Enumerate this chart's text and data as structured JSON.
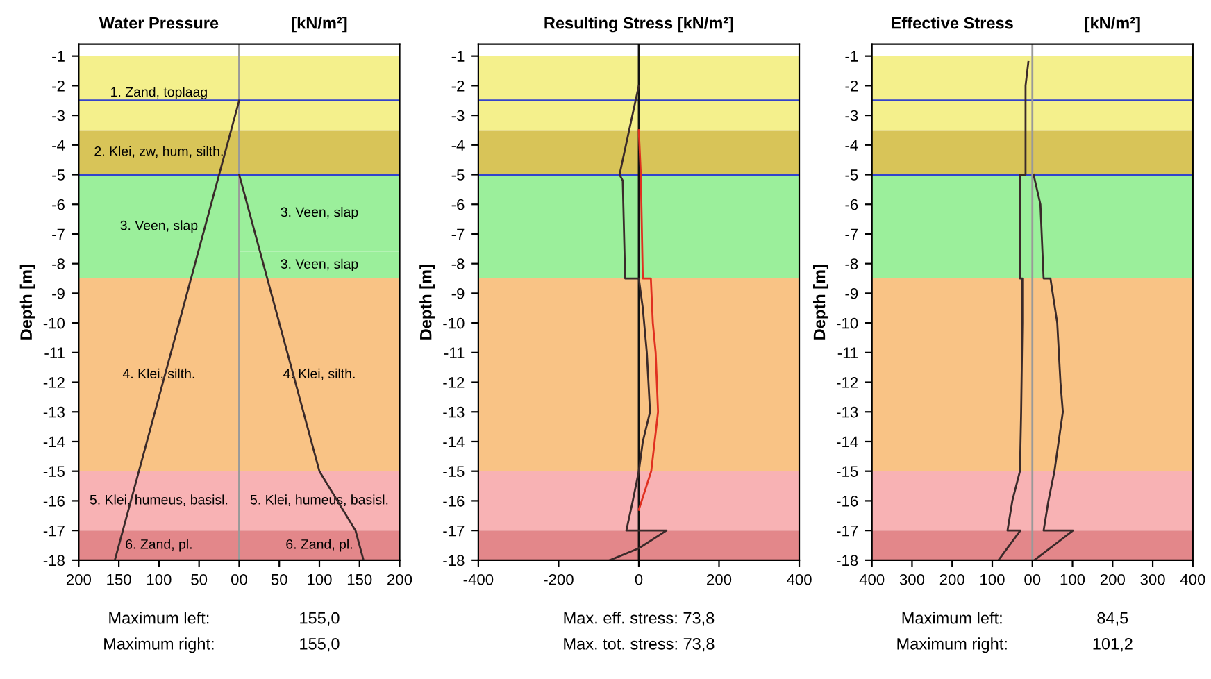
{
  "chart_data": [
    {
      "type": "line",
      "title": "Water Pressure",
      "subtitle": "[kN/m²]",
      "ylabel": "Depth [m]",
      "xlim": [
        -200,
        200
      ],
      "xticks": [
        {
          "value": -200,
          "label": "200"
        },
        {
          "value": -150,
          "label": "150"
        },
        {
          "value": -100,
          "label": "100"
        },
        {
          "value": -50,
          "label": "50"
        },
        {
          "value": 0,
          "label": "00"
        },
        50,
        100,
        150,
        200
      ],
      "ylim": [
        -18,
        -0.6
      ],
      "yticks": [
        -1,
        -2,
        -3,
        -4,
        -5,
        -6,
        -7,
        -8,
        -9,
        -10,
        -11,
        -12,
        -13,
        -14,
        -15,
        -16,
        -17,
        -18
      ],
      "grid": false,
      "legend": false,
      "series": [
        {
          "color": "#3a2a2a",
          "x": [
            0,
            -155
          ],
          "values": [
            -2.5,
            -18
          ]
        },
        {
          "color": "#3a2a2a",
          "x": [
            0,
            100,
            145,
            155
          ],
          "values": [
            -5,
            -15,
            -17,
            -18
          ]
        }
      ],
      "bands": [
        {
          "axis": "y",
          "from": -1,
          "to": -3.5,
          "label": "1. Zand, toplaag",
          "color": "#f4f08c"
        },
        {
          "axis": "y",
          "from": -3.5,
          "to": -5,
          "label": "2. Klei, zw, hum, silth.",
          "color": "#d8c458"
        },
        {
          "axis": "y",
          "from": -5,
          "to": -8.5,
          "label": "3. Veen, slap",
          "color": "#9bef9b"
        },
        {
          "axis": "y",
          "from": -8.5,
          "to": -15,
          "label": "4. Klei, silth.",
          "color": "#f9c385"
        },
        {
          "axis": "y",
          "from": -15,
          "to": -17,
          "label": "5. Klei, humeus, basisl.",
          "color": "#f8b2b4"
        },
        {
          "axis": "y",
          "from": -17,
          "to": -18,
          "label": "6. Zand, pl.",
          "color": "#e3878a"
        },
        {
          "axis": "y",
          "from": -5,
          "to": -7.6,
          "label": "3. Veen, slap",
          "color": "#9bef9b"
        },
        {
          "axis": "y",
          "from": -7.6,
          "to": -8.5,
          "label": "3. Veen, slap",
          "color": "#9bef9b"
        },
        {
          "axis": "y",
          "from": -8.5,
          "to": -15,
          "label": "4. Klei, silth.",
          "color": "#f9c385"
        },
        {
          "axis": "y",
          "from": -15,
          "to": -17,
          "label": "5. Klei, humeus, basisl.",
          "color": "#f8b2b4"
        },
        {
          "axis": "y",
          "from": -17,
          "to": -18,
          "label": "6. Zand, pl.",
          "color": "#e3878a"
        }
      ],
      "ref_lines": [
        {
          "axis": "y",
          "value": -2.5,
          "color": "#3344cc",
          "line_style": "solid"
        },
        {
          "axis": "y",
          "value": -5,
          "color": "#3344cc",
          "line_style": "solid"
        },
        {
          "axis": "x",
          "value": 0,
          "color": "#999999",
          "line_style": "solid"
        }
      ],
      "annotations": [
        "Maximum left:",
        "155,0",
        "Maximum right:",
        "155,0"
      ]
    },
    {
      "type": "line",
      "title": "Resulting Stress [kN/m²]",
      "ylabel": "Depth [m]",
      "xlim": [
        -400,
        400
      ],
      "xticks": [
        -400,
        -200,
        0,
        200,
        400
      ],
      "ylim": [
        -18,
        -0.6
      ],
      "yticks": [
        -1,
        -2,
        -3,
        -4,
        -5,
        -6,
        -7,
        -8,
        -9,
        -10,
        -11,
        -12,
        -13,
        -14,
        -15,
        -16,
        -17,
        -18
      ],
      "grid": false,
      "legend": false,
      "series": [
        {
          "color": "#e03020",
          "x": [
            0,
            5,
            10,
            30,
            35,
            42,
            48,
            31,
            0
          ],
          "values": [
            -3.5,
            -5,
            -8.5,
            -8.5,
            -10,
            -11,
            -13,
            -15,
            -16.3
          ]
        },
        {
          "color": "#3a2a2a",
          "x": [
            0,
            -48,
            -40,
            -34,
            0,
            10,
            20,
            28,
            10,
            0,
            -15,
            -31,
            69,
            0,
            -72
          ],
          "values": [
            -2,
            -5,
            -5.2,
            -8.5,
            -8.5,
            -9.5,
            -11,
            -13,
            -14,
            -15,
            -16,
            -17,
            -17,
            -17.6,
            -18
          ]
        }
      ],
      "bands": [
        {
          "axis": "y",
          "from": -1,
          "to": -3.5,
          "color": "#f4f08c"
        },
        {
          "axis": "y",
          "from": -3.5,
          "to": -5,
          "color": "#d8c458"
        },
        {
          "axis": "y",
          "from": -5,
          "to": -8.5,
          "color": "#9bef9b"
        },
        {
          "axis": "y",
          "from": -8.5,
          "to": -15,
          "color": "#f9c385"
        },
        {
          "axis": "y",
          "from": -15,
          "to": -17,
          "color": "#f8b2b4"
        },
        {
          "axis": "y",
          "from": -17,
          "to": -18,
          "color": "#e3878a"
        }
      ],
      "ref_lines": [
        {
          "axis": "y",
          "value": -2.5,
          "color": "#3344cc",
          "line_style": "solid"
        },
        {
          "axis": "y",
          "value": -5,
          "color": "#3344cc",
          "line_style": "solid"
        },
        {
          "axis": "x",
          "value": 0,
          "color": "#111111",
          "line_style": "solid"
        }
      ],
      "annotations": [
        "Max. eff. stress: 73,8",
        "Max. tot. stress: 73,8"
      ]
    },
    {
      "type": "line",
      "title": "Effective Stress",
      "subtitle": "[kN/m²]",
      "ylabel": "Depth [m]",
      "xlim": [
        -400,
        400
      ],
      "xticks": [
        {
          "value": -400,
          "label": "400"
        },
        {
          "value": -300,
          "label": "300"
        },
        {
          "value": -200,
          "label": "200"
        },
        {
          "value": -100,
          "label": "100"
        },
        {
          "value": 0,
          "label": "00"
        },
        100,
        200,
        300,
        400
      ],
      "ylim": [
        -18,
        -0.6
      ],
      "yticks": [
        -1,
        -2,
        -3,
        -4,
        -5,
        -6,
        -7,
        -8,
        -9,
        -10,
        -11,
        -12,
        -13,
        -14,
        -15,
        -16,
        -17,
        -18
      ],
      "grid": false,
      "legend": false,
      "series": [
        {
          "color": "#3a2a2a",
          "x": [
            -10,
            -17,
            -17,
            -31,
            -31,
            -25,
            -25,
            -28,
            -31,
            -50,
            -62,
            -30,
            -84.5
          ],
          "values": [
            -1.2,
            -2,
            -5,
            -5,
            -8.5,
            -8.5,
            -10,
            -13,
            -15,
            -16,
            -17,
            -17,
            -18
          ]
        },
        {
          "color": "#3a2a2a",
          "x": [
            3,
            20,
            28,
            45,
            62,
            70,
            76,
            55,
            40,
            28,
            101.2,
            5
          ],
          "values": [
            -5,
            -6,
            -8.5,
            -8.5,
            -10,
            -12,
            -13,
            -15,
            -16,
            -17,
            -17,
            -18
          ]
        }
      ],
      "bands": [
        {
          "axis": "y",
          "from": -1,
          "to": -3.5,
          "color": "#f4f08c"
        },
        {
          "axis": "y",
          "from": -3.5,
          "to": -5,
          "color": "#d8c458"
        },
        {
          "axis": "y",
          "from": -5,
          "to": -8.5,
          "color": "#9bef9b"
        },
        {
          "axis": "y",
          "from": -8.5,
          "to": -15,
          "color": "#f9c385"
        },
        {
          "axis": "y",
          "from": -15,
          "to": -17,
          "color": "#f8b2b4"
        },
        {
          "axis": "y",
          "from": -17,
          "to": -18,
          "color": "#e3878a"
        }
      ],
      "ref_lines": [
        {
          "axis": "y",
          "value": -2.5,
          "color": "#3344cc",
          "line_style": "solid"
        },
        {
          "axis": "y",
          "value": -5,
          "color": "#3344cc",
          "line_style": "solid"
        },
        {
          "axis": "x",
          "value": 0,
          "color": "#999999",
          "line_style": "solid"
        }
      ],
      "annotations": [
        "Maximum left:",
        "84,5",
        "Maximum right:",
        "101,2"
      ]
    }
  ]
}
